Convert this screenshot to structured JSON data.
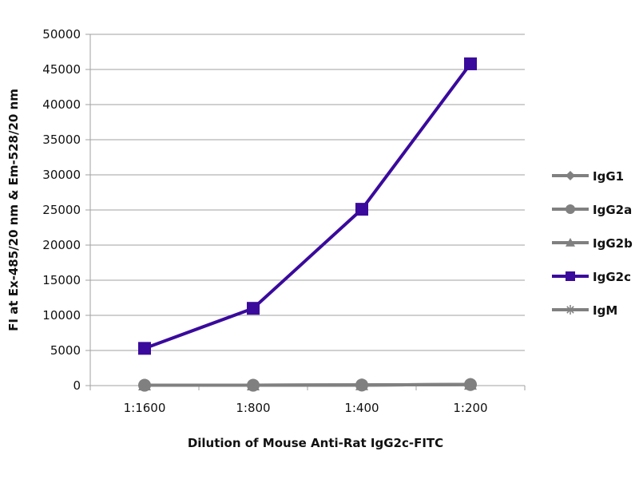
{
  "chart_data": {
    "type": "line",
    "title": "",
    "xlabel": "Dilution of Mouse Anti-Rat IgG2c-FITC",
    "ylabel": "FI at Ex-485/20 nm & Em-528/20 nm",
    "categories": [
      "1:1600",
      "1:800",
      "1:400",
      "1:200"
    ],
    "ylim": [
      0,
      50000
    ],
    "yticks": [
      0,
      5000,
      10000,
      15000,
      20000,
      25000,
      30000,
      35000,
      40000,
      45000,
      50000
    ],
    "grid": "horizontal",
    "legend_position": "right",
    "series": [
      {
        "name": "IgG1",
        "marker": "diamond",
        "color": "#808080",
        "values": [
          50,
          50,
          80,
          150
        ]
      },
      {
        "name": "IgG2a",
        "marker": "circle",
        "color": "#808080",
        "values": [
          50,
          50,
          80,
          150
        ]
      },
      {
        "name": "IgG2b",
        "marker": "triangle",
        "color": "#808080",
        "values": [
          50,
          50,
          80,
          150
        ]
      },
      {
        "name": "IgG2c",
        "marker": "square",
        "color": "#3a0a9c",
        "values": [
          5300,
          11000,
          25100,
          45800
        ]
      },
      {
        "name": "IgM",
        "marker": "star",
        "color": "#808080",
        "values": [
          50,
          50,
          80,
          150
        ]
      }
    ]
  }
}
